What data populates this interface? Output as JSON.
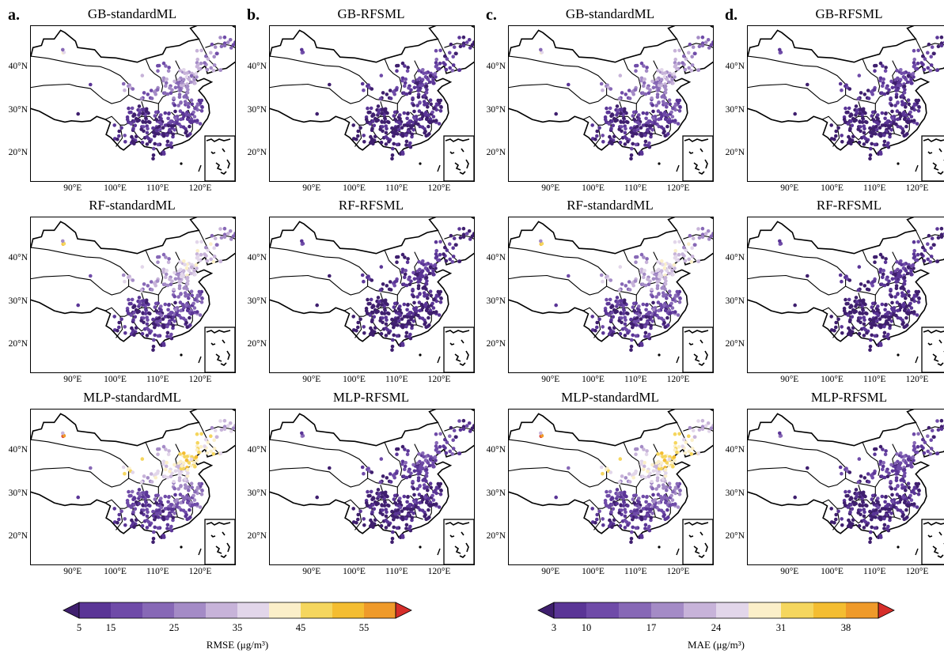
{
  "panels": [
    {
      "letter": "a.",
      "metric": "rmse",
      "maps": [
        {
          "title": "GB-standardML",
          "model": "GB",
          "hot": 0.55
        },
        {
          "title": "RF-standardML",
          "model": "RF",
          "hot": 0.7
        },
        {
          "title": "MLP-standardML",
          "model": "MLP",
          "hot": 0.9
        }
      ]
    },
    {
      "letter": "b.",
      "metric": "rmse",
      "maps": [
        {
          "title": "GB-RFSML",
          "model": "GB",
          "hot": 0.2
        },
        {
          "title": "RF-RFSML",
          "model": "RF",
          "hot": 0.15
        },
        {
          "title": "MLP-RFSML",
          "model": "MLP",
          "hot": 0.25
        }
      ]
    },
    {
      "letter": "c.",
      "metric": "mae",
      "maps": [
        {
          "title": "GB-standardML",
          "model": "GB",
          "hot": 0.55
        },
        {
          "title": "RF-standardML",
          "model": "RF",
          "hot": 0.7
        },
        {
          "title": "MLP-standardML",
          "model": "MLP",
          "hot": 0.9
        }
      ]
    },
    {
      "letter": "d.",
      "metric": "mae",
      "maps": [
        {
          "title": "GB-RFSML",
          "model": "GB",
          "hot": 0.2
        },
        {
          "title": "RF-RFSML",
          "model": "RF",
          "hot": 0.15
        },
        {
          "title": "MLP-RFSML",
          "model": "MLP",
          "hot": 0.25
        }
      ]
    }
  ],
  "lat_ticks": [
    "40°N",
    "30°N",
    "20°N"
  ],
  "lon_ticks": [
    "90°E",
    "100°E",
    "110°E",
    "120°E"
  ],
  "colorbars": [
    {
      "id": "rmse",
      "ticks": [
        "5",
        "15",
        "25",
        "35",
        "45",
        "55"
      ],
      "label": "RMSE (μg/m³)"
    },
    {
      "id": "mae",
      "ticks": [
        "3",
        "10",
        "17",
        "24",
        "31",
        "38"
      ],
      "label": "MAE (μg/m³)"
    }
  ],
  "palette": [
    "#3f1f6e",
    "#5a3596",
    "#6f4ba8",
    "#8768b6",
    "#a48bc6",
    "#c7b3d9",
    "#e2d6ea",
    "#fbefc9",
    "#f5d65e",
    "#f4bd31",
    "#ef9a2a",
    "#d62e2a"
  ]
}
